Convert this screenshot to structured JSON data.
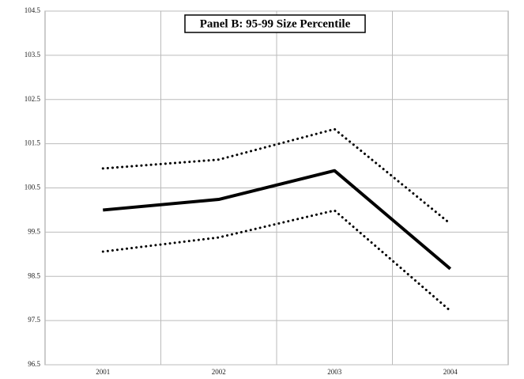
{
  "chart_data": {
    "type": "line",
    "title": "Panel B: 95-99 Size Percentile",
    "categories": [
      "2001",
      "2002",
      "2003",
      "2004"
    ],
    "series": [
      {
        "color": "#000000",
        "style": "dotted",
        "values": [
          100.94,
          101.14,
          101.83,
          99.69
        ]
      },
      {
        "color": "#000000",
        "style": "solid",
        "values": [
          100.0,
          100.24,
          100.89,
          98.67
        ]
      },
      {
        "color": "#000000",
        "style": "dotted",
        "values": [
          99.06,
          99.38,
          99.99,
          97.72
        ]
      }
    ],
    "ylim": [
      96.5,
      104.5
    ],
    "yticks": [
      96.5,
      97.5,
      98.5,
      99.5,
      100.5,
      101.5,
      102.5,
      103.5,
      104.5
    ],
    "grid": true
  }
}
